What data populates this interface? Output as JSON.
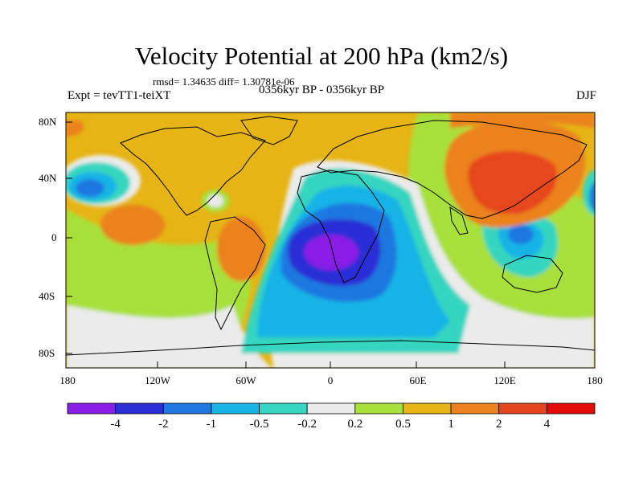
{
  "title": "Velocity Potential at 200 hPa (km2/s)",
  "stats": "rmsd= 1.34635 diff= 1.30781e-06",
  "experiment": "Expt = tevTT1-teiXT",
  "period": "0356kyr BP - 0356kyr BP",
  "season": "DJF",
  "lat_labels": [
    "80N",
    "40N",
    "0",
    "40S",
    "80S"
  ],
  "lon_labels": [
    "180",
    "120W",
    "60W",
    "0",
    "60E",
    "120E",
    "180"
  ],
  "colorbar": {
    "labels": [
      "-4",
      "-2",
      "-1",
      "-0.5",
      "-0.2",
      "0.2",
      "0.5",
      "1",
      "2",
      "4"
    ],
    "colors": [
      "#8a1ee6",
      "#2c2fd6",
      "#1e78e0",
      "#17b4e6",
      "#36d6c0",
      "#ebebeb",
      "#a8e03a",
      "#e6b414",
      "#eb821e",
      "#e6461e",
      "#e30a0a"
    ]
  }
}
